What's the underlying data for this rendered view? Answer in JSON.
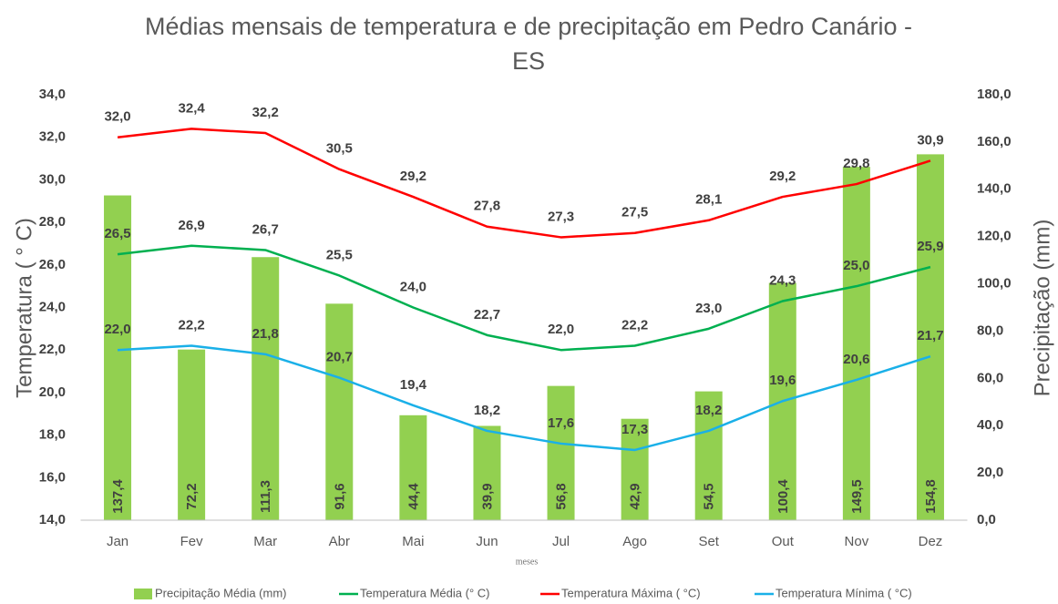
{
  "chart_data": {
    "type": "combo",
    "title": "Médias mensais de temperatura e de precipitação em Pedro Canário - ES",
    "x_label": "meses",
    "y_label": "Temperatura ( ° C)",
    "y2_label": "Precipitação (mm)",
    "categories": [
      "Jan",
      "Fev",
      "Mar",
      "Abr",
      "Mai",
      "Jun",
      "Jul",
      "Ago",
      "Set",
      "Out",
      "Nov",
      "Dez"
    ],
    "ylim": [
      14,
      34
    ],
    "yticks": [
      {
        "value": 14,
        "label": "14,0"
      },
      {
        "value": 16,
        "label": "16,0"
      },
      {
        "value": 18,
        "label": "18,0"
      },
      {
        "value": 20,
        "label": "20,0"
      },
      {
        "value": 22,
        "label": "22,0"
      },
      {
        "value": 24,
        "label": "24,0"
      },
      {
        "value": 26,
        "label": "26,0"
      },
      {
        "value": 28,
        "label": "28,0"
      },
      {
        "value": 30,
        "label": "30,0"
      },
      {
        "value": 32,
        "label": "32,0"
      },
      {
        "value": 34,
        "label": "34,0"
      }
    ],
    "y2lim": [
      0,
      180
    ],
    "y2ticks": [
      {
        "value": 0,
        "label": "0,0"
      },
      {
        "value": 20,
        "label": "20,0"
      },
      {
        "value": 40,
        "label": "40,0"
      },
      {
        "value": 60,
        "label": "60,0"
      },
      {
        "value": 80,
        "label": "80,0"
      },
      {
        "value": 100,
        "label": "100,0"
      },
      {
        "value": 120,
        "label": "120,0"
      },
      {
        "value": 140,
        "label": "140,0"
      },
      {
        "value": 160,
        "label": "160,0"
      },
      {
        "value": 180,
        "label": "180,0"
      }
    ],
    "legend": "bottom",
    "series": [
      {
        "name": "Precipitação Média (mm)",
        "type": "bar",
        "axis": "y2",
        "color": "#92d050",
        "values": [
          137.4,
          72.2,
          111.3,
          91.6,
          44.4,
          39.9,
          56.8,
          42.9,
          54.5,
          100.4,
          149.5,
          154.8
        ],
        "value_labels": [
          "137,4",
          "72,2",
          "111,3",
          "91,6",
          "44,4",
          "39,9",
          "56,8",
          "42,9",
          "54,5",
          "100,4",
          "149,5",
          "154,8"
        ]
      },
      {
        "name": "Temperatura Média (° C)",
        "type": "line",
        "color": "#00b050",
        "values": [
          26.5,
          26.9,
          26.7,
          25.5,
          24.0,
          22.7,
          22.0,
          22.2,
          23.0,
          24.3,
          25.0,
          25.9
        ],
        "value_labels": [
          "26,5",
          "26,9",
          "26,7",
          "25,5",
          "24,0",
          "22,7",
          "22,0",
          "22,2",
          "23,0",
          "24,3",
          "25,0",
          "25,9"
        ]
      },
      {
        "name": "Temperatura Máxima ( °C)",
        "type": "line",
        "color": "#ff0000",
        "values": [
          32.0,
          32.4,
          32.2,
          30.5,
          29.2,
          27.8,
          27.3,
          27.5,
          28.1,
          29.2,
          29.8,
          30.9
        ],
        "value_labels": [
          "32,0",
          "32,4",
          "32,2",
          "30,5",
          "29,2",
          "27,8",
          "27,3",
          "27,5",
          "28,1",
          "29,2",
          "29,8",
          "30,9"
        ]
      },
      {
        "name": "Temperatura Mínima ( °C)",
        "type": "line",
        "color": "#1ab0e8",
        "values": [
          22.0,
          22.2,
          21.8,
          20.7,
          19.4,
          18.2,
          17.6,
          17.3,
          18.2,
          19.6,
          20.6,
          21.7
        ],
        "value_labels": [
          "22,0",
          "22,2",
          "21,8",
          "20,7",
          "19,4",
          "18,2",
          "17,6",
          "17,3",
          "18,2",
          "19,6",
          "20,6",
          "21,7"
        ]
      }
    ]
  }
}
